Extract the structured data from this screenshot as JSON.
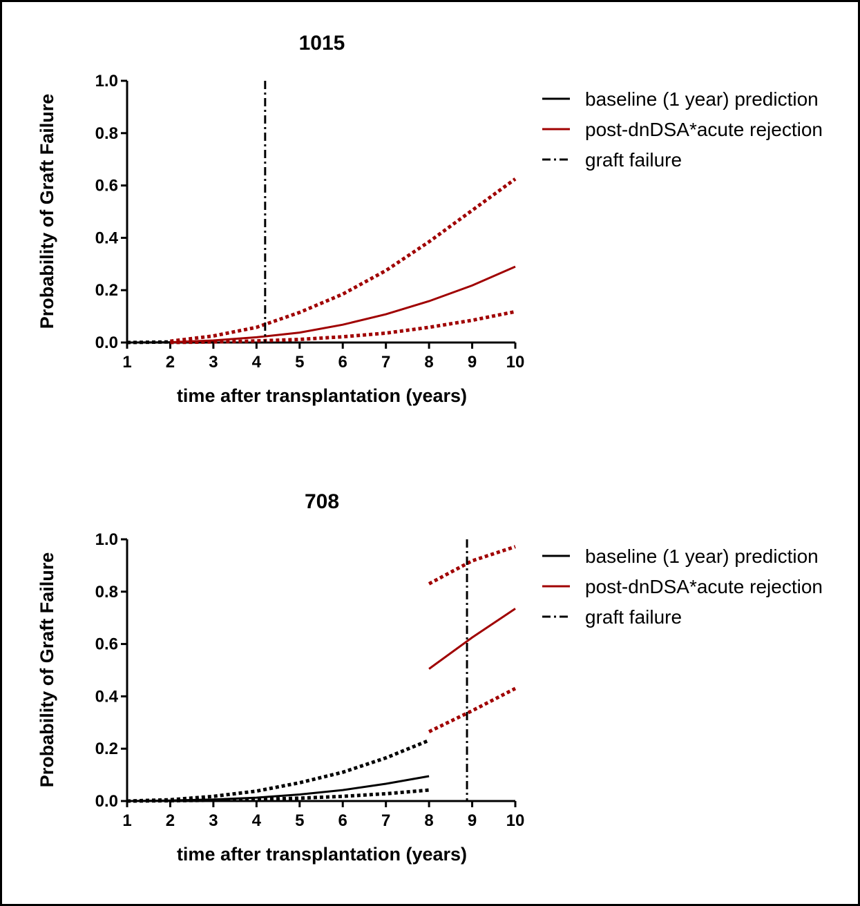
{
  "colors": {
    "baseline": "#000000",
    "post": "#a00000",
    "failure": "#000000",
    "border": "#000000"
  },
  "chart_data": [
    {
      "type": "line",
      "title": "1015",
      "xlabel": "time after transplantation (years)",
      "ylabel": "Probability of Graft Failure",
      "xlim": [
        1,
        10
      ],
      "ylim": [
        0,
        1.0
      ],
      "xticks": [
        "1",
        "2",
        "3",
        "4",
        "5",
        "6",
        "7",
        "8",
        "9",
        "10"
      ],
      "yticks": [
        "0.0",
        "0.2",
        "0.4",
        "0.6",
        "0.8",
        "1.0"
      ],
      "legend": {
        "position": "right",
        "entries": [
          {
            "label": "baseline (1 year) prediction",
            "style": "solid",
            "color": "#000000"
          },
          {
            "label": "post-dnDSA*acute rejection",
            "style": "solid",
            "color": "#a00000"
          },
          {
            "label": "graft failure",
            "style": "dash-dot",
            "color": "#000000"
          }
        ]
      },
      "series": [
        {
          "name": "baseline (1 year) prediction",
          "style": "solid",
          "color": "#000000",
          "x": [
            1,
            2
          ],
          "y": [
            0.0,
            0.001
          ]
        },
        {
          "name": "baseline (1 year) prediction",
          "style": "dotted",
          "color": "#000000",
          "x": [
            1,
            2
          ],
          "y": [
            0.0,
            0.002
          ]
        },
        {
          "name": "post-dnDSA*acute rejection",
          "style": "solid",
          "color": "#a00000",
          "x": [
            2,
            3,
            4,
            5,
            6,
            7,
            8,
            9,
            10
          ],
          "y": [
            0.001,
            0.008,
            0.02,
            0.038,
            0.068,
            0.108,
            0.158,
            0.218,
            0.29
          ]
        },
        {
          "name": "post-dnDSA*acute rejection",
          "style": "dotted",
          "color": "#a00000",
          "x": [
            2,
            3,
            4,
            5,
            6,
            7,
            8,
            9,
            10
          ],
          "y": [
            0.005,
            0.025,
            0.058,
            0.115,
            0.185,
            0.275,
            0.385,
            0.505,
            0.625
          ]
        },
        {
          "name": "post-dnDSA*acute rejection",
          "style": "dotted",
          "color": "#a00000",
          "x": [
            2,
            3,
            4,
            5,
            6,
            7,
            8,
            9,
            10
          ],
          "y": [
            0.0,
            0.002,
            0.006,
            0.012,
            0.022,
            0.036,
            0.058,
            0.085,
            0.118
          ]
        }
      ],
      "events": [
        {
          "name": "graft failure",
          "x": 4.2
        }
      ]
    },
    {
      "type": "line",
      "title": "708",
      "xlabel": "time after transplantation (years)",
      "ylabel": "Probability of Graft Failure",
      "xlim": [
        1,
        10
      ],
      "ylim": [
        0,
        1.0
      ],
      "xticks": [
        "1",
        "2",
        "3",
        "4",
        "5",
        "6",
        "7",
        "8",
        "9",
        "10"
      ],
      "yticks": [
        "0.0",
        "0.2",
        "0.4",
        "0.6",
        "0.8",
        "1.0"
      ],
      "legend": {
        "position": "right",
        "entries": [
          {
            "label": "baseline (1 year) prediction",
            "style": "solid",
            "color": "#000000"
          },
          {
            "label": "post-dnDSA*acute rejection",
            "style": "solid",
            "color": "#a00000"
          },
          {
            "label": "graft failure",
            "style": "dash-dot",
            "color": "#000000"
          }
        ]
      },
      "series": [
        {
          "name": "baseline (1 year) prediction",
          "style": "solid",
          "color": "#000000",
          "x": [
            1,
            2,
            3,
            4,
            5,
            6,
            7,
            8
          ],
          "y": [
            0.0,
            0.002,
            0.006,
            0.013,
            0.025,
            0.042,
            0.066,
            0.095
          ]
        },
        {
          "name": "baseline (1 year) prediction",
          "style": "dotted",
          "color": "#000000",
          "x": [
            1,
            2,
            3,
            4,
            5,
            6,
            7,
            8
          ],
          "y": [
            0.0,
            0.005,
            0.018,
            0.038,
            0.07,
            0.11,
            0.165,
            0.232
          ]
        },
        {
          "name": "baseline (1 year) prediction",
          "style": "dotted",
          "color": "#000000",
          "x": [
            1,
            2,
            3,
            4,
            5,
            6,
            7,
            8
          ],
          "y": [
            0.0,
            0.001,
            0.003,
            0.006,
            0.011,
            0.018,
            0.028,
            0.042
          ]
        },
        {
          "name": "post-dnDSA*acute rejection",
          "style": "solid",
          "color": "#a00000",
          "x": [
            8,
            9,
            10
          ],
          "y": [
            0.505,
            0.625,
            0.735
          ]
        },
        {
          "name": "post-dnDSA*acute rejection",
          "style": "dotted",
          "color": "#a00000",
          "x": [
            8,
            9,
            10
          ],
          "y": [
            0.83,
            0.918,
            0.972
          ]
        },
        {
          "name": "post-dnDSA*acute rejection",
          "style": "dotted",
          "color": "#a00000",
          "x": [
            8,
            9,
            10
          ],
          "y": [
            0.265,
            0.345,
            0.43
          ]
        }
      ],
      "events": [
        {
          "name": "graft failure",
          "x": 8.88
        }
      ]
    }
  ]
}
